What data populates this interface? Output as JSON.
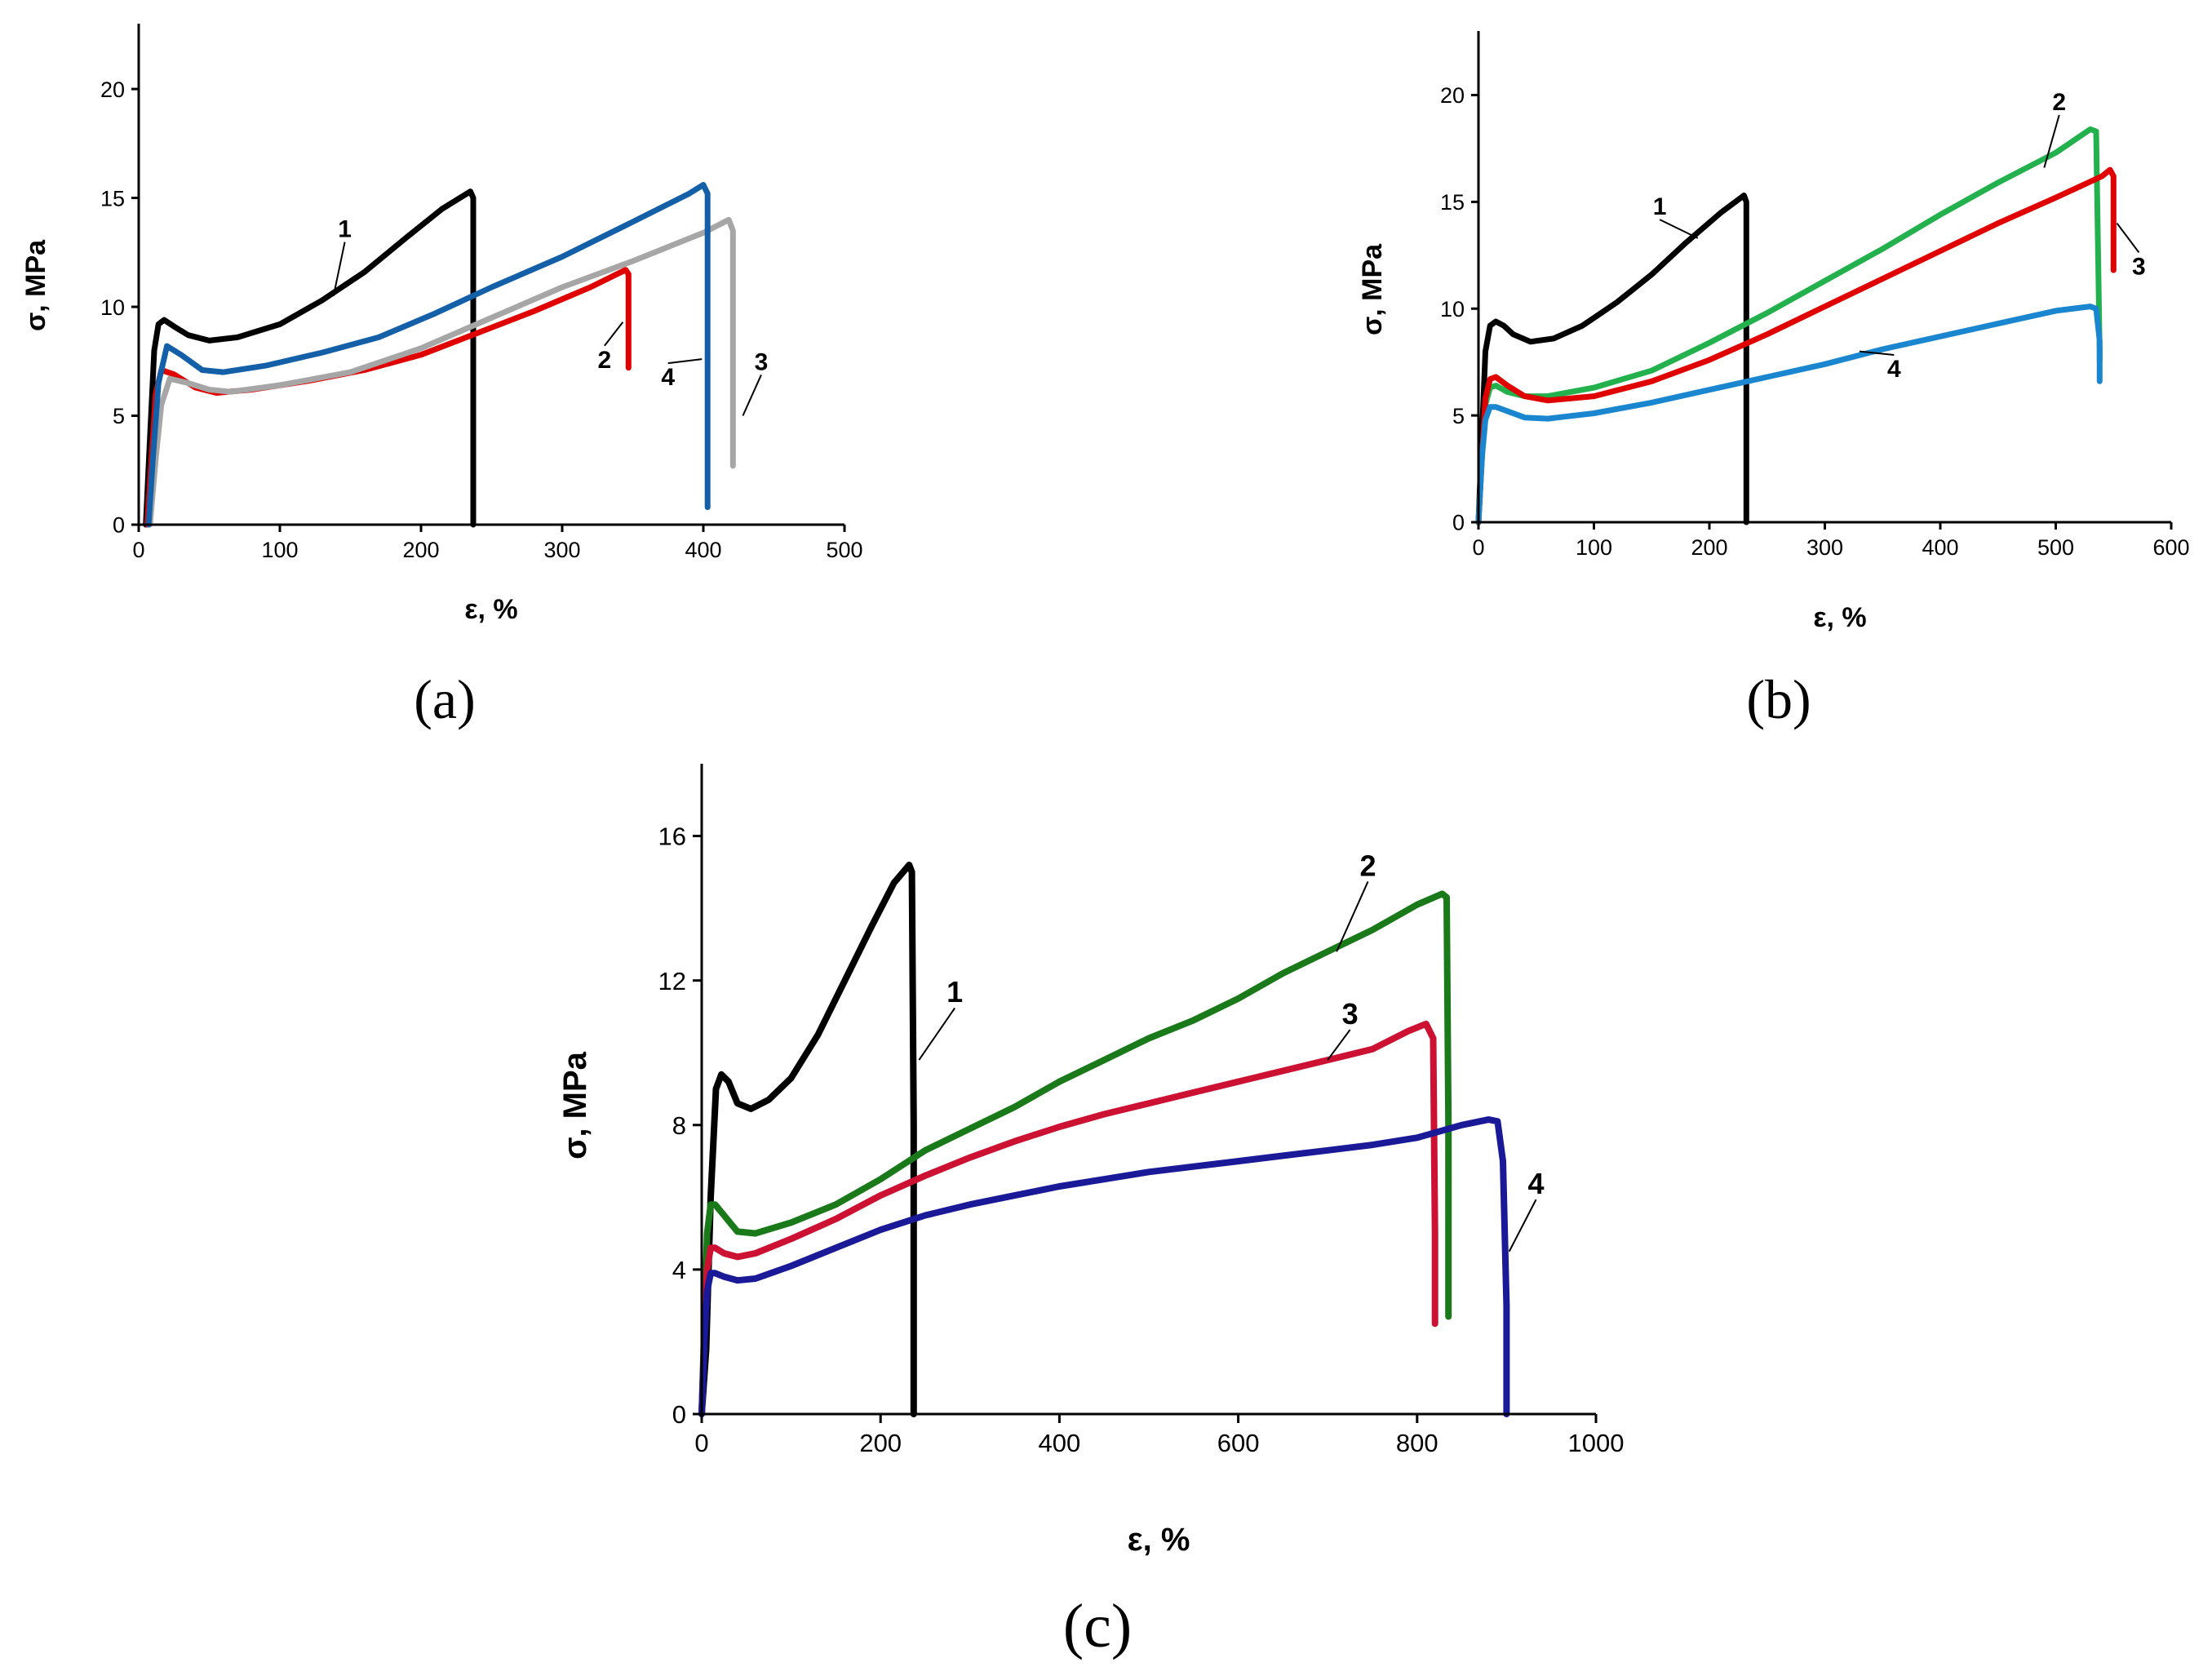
{
  "chart_data": [
    {
      "type": "line",
      "panel_label": "(a)",
      "xlabel": "ε, %",
      "ylabel": "σ, MPa",
      "xlim": [
        0,
        500
      ],
      "ylim": [
        0,
        23
      ],
      "xticks": [
        0,
        100,
        200,
        300,
        400,
        500
      ],
      "yticks": [
        0,
        5,
        10,
        15,
        20
      ],
      "grid": false,
      "series": [
        {
          "name": "1",
          "color": "#000000",
          "x": [
            5,
            8,
            11,
            14,
            18,
            25,
            35,
            50,
            70,
            100,
            130,
            160,
            190,
            215,
            235,
            237,
            237
          ],
          "y": [
            0,
            4,
            8,
            9.2,
            9.4,
            9.1,
            8.7,
            8.45,
            8.6,
            9.2,
            10.3,
            11.6,
            13.2,
            14.5,
            15.3,
            15.0,
            0
          ],
          "label_x": 146,
          "label_y": 13.2,
          "leader_x": 138,
          "leader_y": 10.5
        },
        {
          "name": "2",
          "color": "#e00000",
          "x": [
            6,
            9,
            12,
            16,
            25,
            40,
            55,
            80,
            120,
            160,
            200,
            240,
            280,
            320,
            345,
            347,
            347
          ],
          "y": [
            0,
            3,
            6,
            7.1,
            6.9,
            6.3,
            6.05,
            6.2,
            6.6,
            7.1,
            7.8,
            8.8,
            9.8,
            10.9,
            11.7,
            11.5,
            7.2
          ],
          "label_x": 330,
          "label_y": 7.2,
          "leader_x": 343,
          "leader_y": 9.3
        },
        {
          "name": "3",
          "color": "#a6a6a6",
          "x": [
            8,
            12,
            16,
            22,
            35,
            50,
            65,
            100,
            150,
            200,
            250,
            300,
            350,
            400,
            418,
            421,
            421
          ],
          "y": [
            0,
            3,
            5.5,
            6.7,
            6.5,
            6.2,
            6.1,
            6.4,
            7.0,
            8.1,
            9.5,
            10.9,
            12.1,
            13.4,
            14.0,
            13.5,
            2.7
          ],
          "label_x": 441,
          "label_y": 7.1,
          "leader_x": 428,
          "leader_y": 5.0
        },
        {
          "name": "4",
          "color": "#1460a8",
          "x": [
            7,
            10,
            14,
            20,
            30,
            45,
            60,
            90,
            130,
            170,
            210,
            250,
            300,
            350,
            390,
            400,
            403,
            403
          ],
          "y": [
            0,
            3,
            6.5,
            8.2,
            7.8,
            7.1,
            7.0,
            7.3,
            7.9,
            8.6,
            9.7,
            10.9,
            12.3,
            13.9,
            15.2,
            15.6,
            15.2,
            0.8
          ],
          "label_x": 375,
          "label_y": 6.4,
          "leader_x": 399,
          "leader_y": 7.6
        }
      ]
    },
    {
      "type": "line",
      "panel_label": "(b)",
      "xlabel": "ε, %",
      "ylabel": "σ, MPa",
      "xlim": [
        0,
        600
      ],
      "ylim": [
        0,
        23
      ],
      "xticks": [
        0,
        100,
        200,
        300,
        400,
        500,
        600
      ],
      "yticks": [
        0,
        5,
        10,
        15,
        20
      ],
      "grid": false,
      "series": [
        {
          "name": "1",
          "color": "#000000",
          "x": [
            0,
            3,
            6,
            10,
            15,
            22,
            30,
            45,
            65,
            90,
            120,
            150,
            180,
            210,
            230,
            232,
            232
          ],
          "y": [
            0,
            4,
            8,
            9.2,
            9.4,
            9.2,
            8.8,
            8.45,
            8.6,
            9.2,
            10.3,
            11.6,
            13.1,
            14.5,
            15.3,
            15.0,
            0
          ],
          "label_x": 157,
          "label_y": 14.4,
          "leader_x": 190,
          "leader_y": 13.3
        },
        {
          "name": "2",
          "color": "#22b14c",
          "x": [
            0,
            3,
            6,
            10,
            15,
            25,
            40,
            60,
            100,
            150,
            200,
            250,
            300,
            350,
            400,
            450,
            500,
            530,
            535,
            538,
            538
          ],
          "y": [
            0,
            3,
            5.5,
            6.3,
            6.4,
            6.1,
            5.9,
            5.9,
            6.3,
            7.1,
            8.4,
            9.8,
            11.3,
            12.8,
            14.4,
            15.9,
            17.3,
            18.4,
            18.3,
            8.0,
            7.6
          ],
          "label_x": 503,
          "label_y": 19.3,
          "leader_x": 490,
          "leader_y": 16.6
        },
        {
          "name": "3",
          "color": "#e00000",
          "x": [
            0,
            3,
            6,
            10,
            15,
            25,
            40,
            60,
            100,
            150,
            200,
            250,
            300,
            350,
            400,
            450,
            500,
            540,
            547,
            550,
            550
          ],
          "y": [
            0,
            3,
            5.8,
            6.7,
            6.8,
            6.4,
            5.9,
            5.7,
            5.9,
            6.6,
            7.6,
            8.8,
            10.1,
            11.4,
            12.7,
            14.0,
            15.2,
            16.2,
            16.5,
            16.2,
            11.8
          ],
          "label_x": 572,
          "label_y": 11.6,
          "leader_x": 553,
          "leader_y": 14.0
        },
        {
          "name": "4",
          "color": "#1a86d0",
          "x": [
            0,
            3,
            6,
            10,
            15,
            25,
            40,
            60,
            100,
            150,
            200,
            250,
            300,
            350,
            400,
            450,
            500,
            530,
            535,
            538,
            538
          ],
          "y": [
            0,
            3,
            4.8,
            5.4,
            5.4,
            5.2,
            4.9,
            4.85,
            5.1,
            5.6,
            6.2,
            6.8,
            7.4,
            8.1,
            8.7,
            9.3,
            9.9,
            10.1,
            10.0,
            8.5,
            6.6
          ],
          "label_x": 360,
          "label_y": 6.8,
          "leader_x": 330,
          "leader_y": 8.0
        }
      ]
    },
    {
      "type": "line",
      "panel_label": "(c)",
      "xlabel": "ε, %",
      "ylabel": "σ, MPa",
      "xlim": [
        0,
        1000
      ],
      "ylim": [
        0,
        18
      ],
      "xticks": [
        0,
        200,
        400,
        600,
        800,
        1000
      ],
      "yticks": [
        0,
        4,
        8,
        12,
        16
      ],
      "grid": false,
      "series": [
        {
          "name": "1",
          "color": "#000000",
          "x": [
            0,
            5,
            10,
            16,
            22,
            30,
            40,
            55,
            75,
            100,
            130,
            160,
            190,
            215,
            232,
            235,
            237,
            237
          ],
          "y": [
            0,
            1.8,
            6.0,
            9.0,
            9.4,
            9.2,
            8.6,
            8.45,
            8.7,
            9.3,
            10.5,
            12.0,
            13.5,
            14.7,
            15.2,
            15.0,
            8.0,
            0
          ],
          "label_x": 283,
          "label_y": 11.4,
          "leader_x": 243,
          "leader_y": 9.8
        },
        {
          "name": "2",
          "color": "#1a7a1a",
          "x": [
            0,
            3,
            6,
            10,
            15,
            25,
            40,
            60,
            100,
            150,
            200,
            250,
            300,
            350,
            400,
            450,
            500,
            550,
            600,
            650,
            700,
            750,
            800,
            828,
            833,
            835,
            835
          ],
          "y": [
            0,
            2.5,
            5.0,
            5.8,
            5.8,
            5.5,
            5.05,
            5.0,
            5.3,
            5.8,
            6.5,
            7.3,
            7.9,
            8.5,
            9.2,
            9.8,
            10.4,
            10.9,
            11.5,
            12.2,
            12.8,
            13.4,
            14.1,
            14.4,
            14.3,
            8.0,
            2.7
          ],
          "label_x": 745,
          "label_y": 14.9,
          "leader_x": 710,
          "leader_y": 12.8
        },
        {
          "name": "3",
          "color": "#cc1133",
          "x": [
            0,
            3,
            6,
            10,
            15,
            25,
            40,
            60,
            100,
            150,
            200,
            250,
            300,
            350,
            400,
            450,
            500,
            550,
            600,
            650,
            700,
            750,
            790,
            810,
            818,
            820,
            820
          ],
          "y": [
            0,
            2.2,
            4.0,
            4.6,
            4.6,
            4.45,
            4.35,
            4.45,
            4.85,
            5.4,
            6.05,
            6.6,
            7.1,
            7.55,
            7.95,
            8.3,
            8.6,
            8.9,
            9.2,
            9.5,
            9.8,
            10.1,
            10.6,
            10.8,
            10.4,
            5.0,
            2.5
          ],
          "label_x": 725,
          "label_y": 10.8,
          "leader_x": 700,
          "leader_y": 9.8
        },
        {
          "name": "4",
          "color": "#1a1a99",
          "x": [
            0,
            3,
            6,
            10,
            15,
            25,
            40,
            60,
            100,
            150,
            200,
            250,
            300,
            350,
            400,
            450,
            500,
            550,
            600,
            650,
            700,
            750,
            800,
            850,
            880,
            890,
            896,
            900,
            900
          ],
          "y": [
            0,
            2.0,
            3.4,
            3.9,
            3.9,
            3.8,
            3.7,
            3.75,
            4.1,
            4.6,
            5.1,
            5.5,
            5.8,
            6.05,
            6.3,
            6.5,
            6.7,
            6.85,
            7.0,
            7.15,
            7.3,
            7.45,
            7.65,
            8.0,
            8.15,
            8.1,
            7.0,
            3.0,
            0
          ],
          "label_x": 933,
          "label_y": 6.1,
          "leader_x": 903,
          "leader_y": 4.5
        }
      ]
    }
  ]
}
